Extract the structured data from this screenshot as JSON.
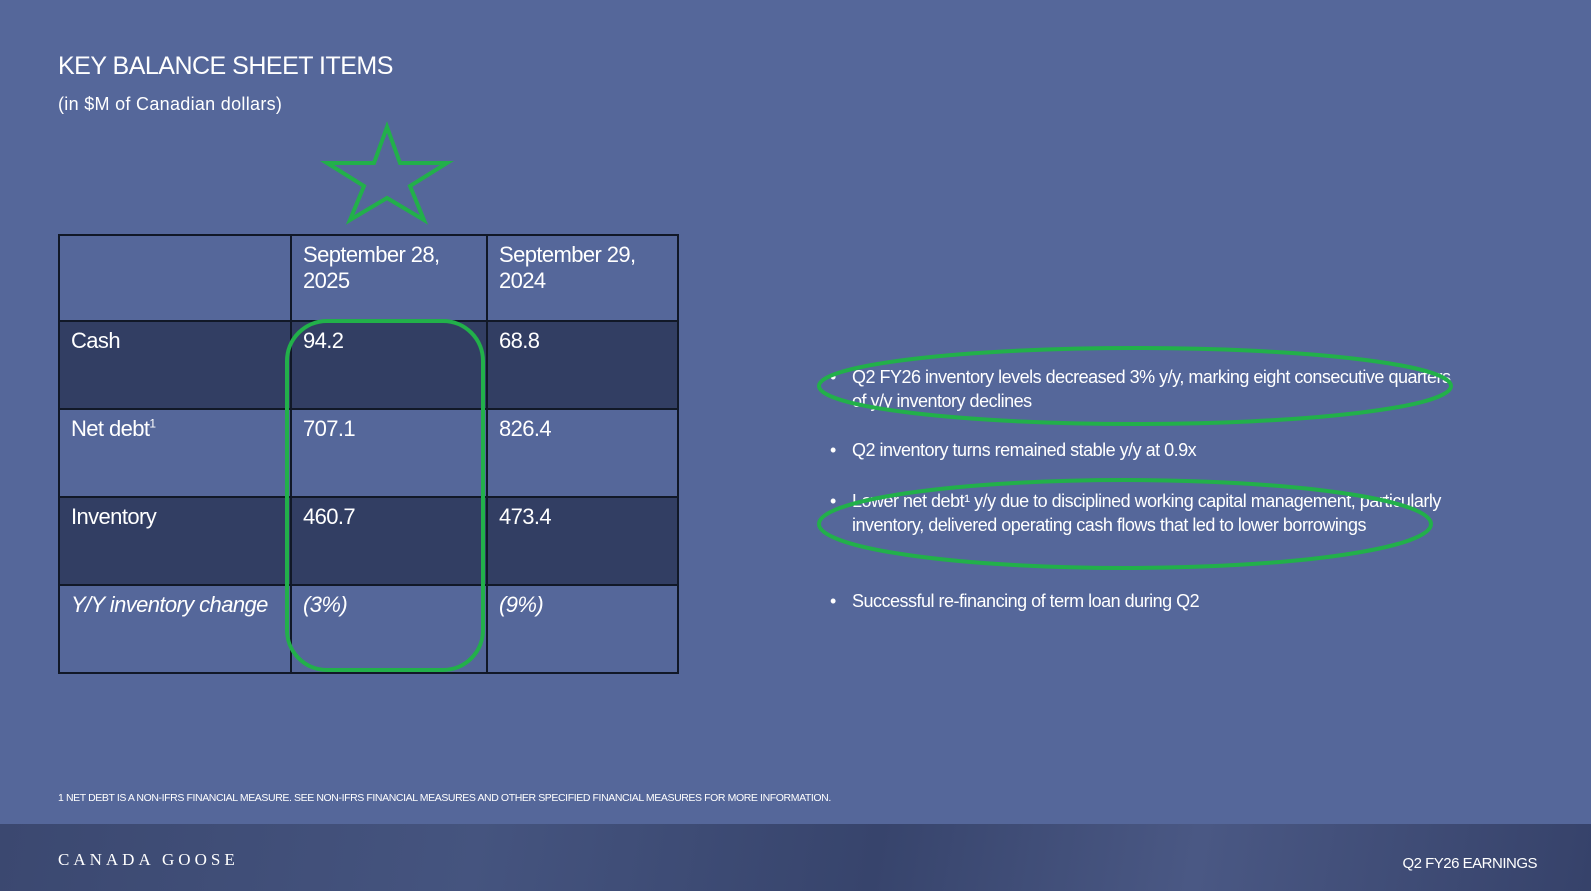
{
  "title": "KEY BALANCE SHEET ITEMS",
  "subtitle": "(in $M of Canadian dollars)",
  "table": {
    "headers": [
      "",
      "September 28, 2025",
      "September 29, 2024"
    ],
    "rows": [
      {
        "label": "Cash",
        "sup": "",
        "v1": "94.2",
        "v2": "68.8"
      },
      {
        "label": "Net debt",
        "sup": "1",
        "v1": "707.1",
        "v2": "826.4"
      },
      {
        "label": "Inventory",
        "sup": "",
        "v1": "460.7",
        "v2": "473.4"
      },
      {
        "label": "Y/Y inventory change",
        "sup": "",
        "v1": "(3%)",
        "v2": "(9%)"
      }
    ]
  },
  "bullets": [
    "Q2 FY26 inventory levels decreased 3% y/y, marking eight consecutive quarters of y/y inventory declines",
    "Q2 inventory turns remained stable y/y at 0.9x",
    "Lower net debt¹ y/y due to disciplined working capital management, particularly inventory, delivered operating cash flows that led to lower borrowings",
    "Successful re-financing of term loan during Q2"
  ],
  "footnote": "1 NET DEBT IS A NON-IFRS FINANCIAL MEASURE. SEE NON-IFRS FINANCIAL MEASURES AND OTHER SPECIFIED FINANCIAL MEASURES FOR MORE INFORMATION.",
  "footer": {
    "logo": "CANADA GOOSE",
    "label": "Q2 FY26 EARNINGS"
  },
  "colors": {
    "background": "#55679a",
    "dark_row": "#323e63",
    "highlight": "#22b04a"
  },
  "annotations": [
    "star-icon",
    "highlight-oval"
  ]
}
